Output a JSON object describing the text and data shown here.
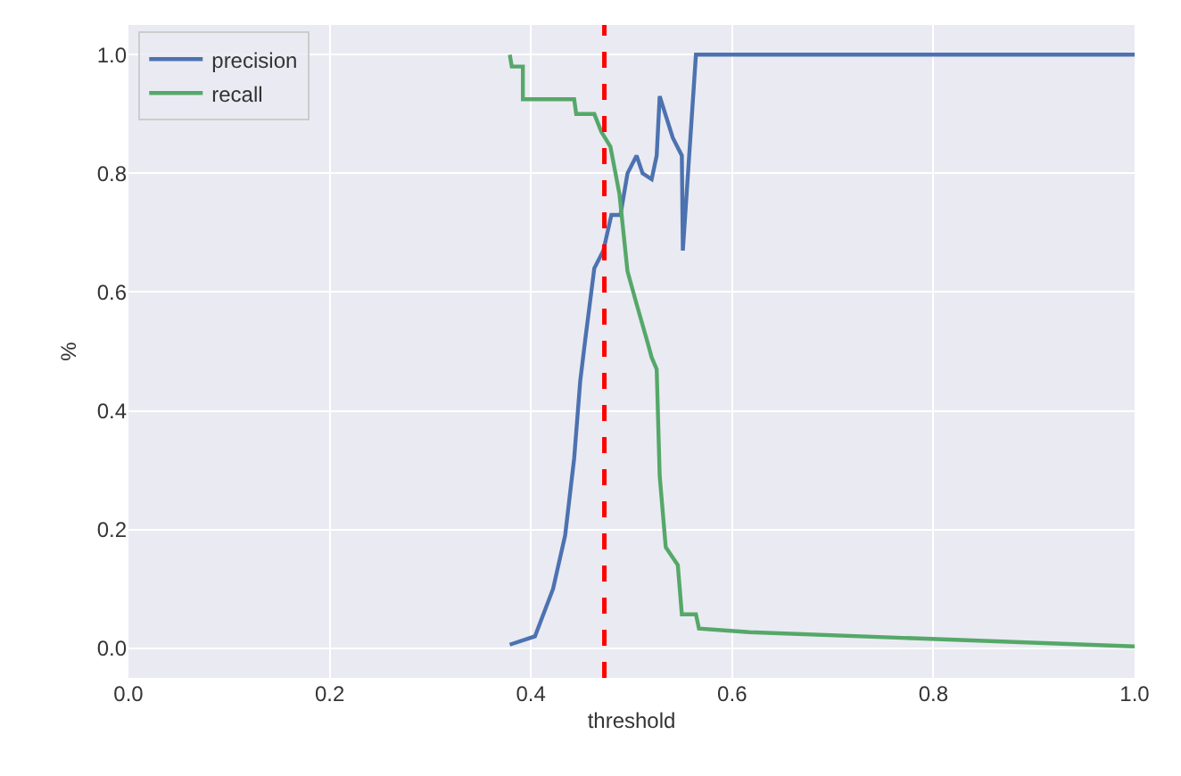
{
  "chart_data": {
    "type": "line",
    "xlabel": "threshold",
    "ylabel": "%",
    "xlim": [
      0,
      1
    ],
    "ylim": [
      -0.05,
      1.05
    ],
    "xticks": [
      {
        "value": 0,
        "label": "0.0"
      },
      {
        "value": 0.2,
        "label": "0.2"
      },
      {
        "value": 0.4,
        "label": "0.4"
      },
      {
        "value": 0.6,
        "label": "0.6"
      },
      {
        "value": 0.8,
        "label": "0.8"
      },
      {
        "value": 1,
        "label": "1.0"
      }
    ],
    "yticks": [
      {
        "value": 0,
        "label": "0.0"
      },
      {
        "value": 0.2,
        "label": "0.2"
      },
      {
        "value": 0.4,
        "label": "0.4"
      },
      {
        "value": 0.6,
        "label": "0.6"
      },
      {
        "value": 0.8,
        "label": "0.8"
      },
      {
        "value": 1,
        "label": "1.0"
      }
    ],
    "grid": true,
    "legend": "top left",
    "line_style": "solid",
    "series": [
      {
        "name": "precision",
        "color": "#4c72b0",
        "x": [
          0.379,
          0.404,
          0.422,
          0.434,
          0.443,
          0.449,
          0.454,
          0.463,
          0.472,
          0.48,
          0.489,
          0.496,
          0.505,
          0.511,
          0.52,
          0.525,
          0.528,
          0.541,
          0.55,
          0.551,
          0.564,
          1.0
        ],
        "values": [
          0.006,
          0.02,
          0.1,
          0.19,
          0.32,
          0.45,
          0.52,
          0.64,
          0.67,
          0.73,
          0.73,
          0.8,
          0.83,
          0.8,
          0.79,
          0.83,
          0.93,
          0.86,
          0.83,
          0.67,
          1.0,
          1.0
        ]
      },
      {
        "name": "recall",
        "color": "#55a868",
        "x": [
          0.379,
          0.381,
          0.392,
          0.392,
          0.443,
          0.445,
          0.463,
          0.47,
          0.479,
          0.488,
          0.496,
          0.505,
          0.516,
          0.52,
          0.525,
          0.528,
          0.534,
          0.546,
          0.55,
          0.564,
          0.567,
          0.617,
          1.0
        ],
        "values": [
          1.0,
          0.98,
          0.98,
          0.925,
          0.925,
          0.9,
          0.9,
          0.87,
          0.845,
          0.765,
          0.635,
          0.58,
          0.515,
          0.49,
          0.47,
          0.29,
          0.17,
          0.14,
          0.057,
          0.057,
          0.033,
          0.027,
          0.003
        ]
      }
    ],
    "ref_lines": [
      {
        "axis": "x",
        "value": 0.473,
        "color": "#ff0000",
        "line_style": "dashed"
      }
    ]
  }
}
